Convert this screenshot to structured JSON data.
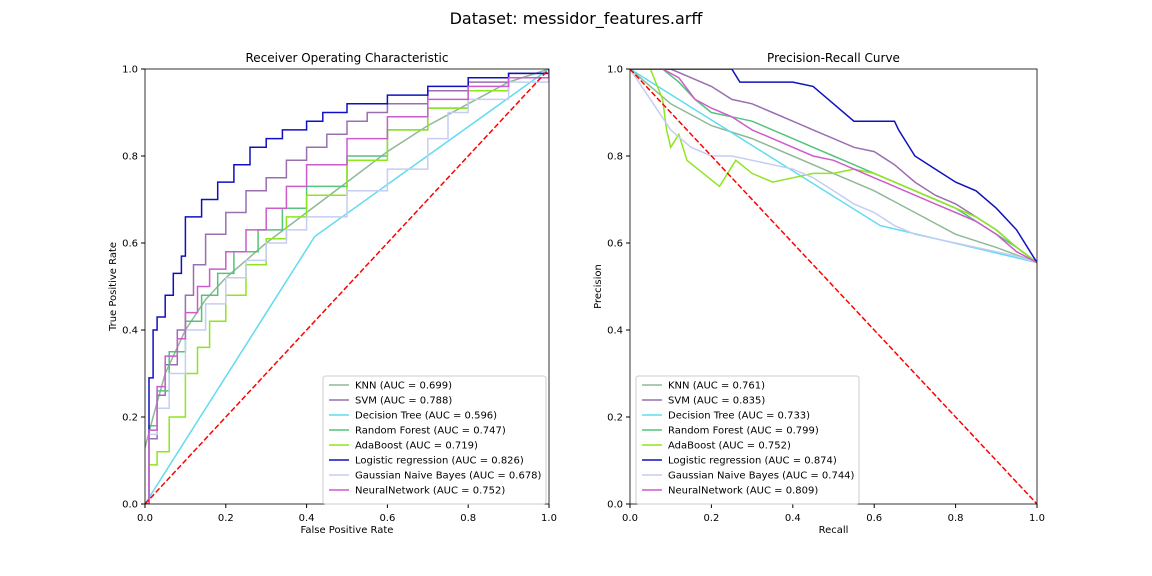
{
  "suptitle": "Dataset: messidor_features.arff",
  "chart_data": [
    {
      "type": "line",
      "title": "Receiver Operating Characteristic",
      "xlabel": "False Positive Rate",
      "ylabel": "True Positive Rate",
      "xlim": [
        0,
        1
      ],
      "ylim": [
        0,
        1
      ],
      "xticks": [
        "0.0",
        "0.2",
        "0.4",
        "0.6",
        "0.8",
        "1.0"
      ],
      "yticks": [
        "0.0",
        "0.2",
        "0.4",
        "0.6",
        "0.8",
        "1.0"
      ],
      "legend_position": "lower-right",
      "reference_line": {
        "x": [
          0,
          1
        ],
        "y": [
          0,
          1
        ],
        "color": "#ff0000",
        "style": "dashed"
      },
      "series": [
        {
          "name": "KNN",
          "label": "KNN (AUC = 0.699)",
          "color": "#8fb996",
          "step": false,
          "x": [
            0,
            0.02,
            0.05,
            0.1,
            0.15,
            0.2,
            0.3,
            0.4,
            0.5,
            0.6,
            0.7,
            0.8,
            0.9,
            1.0
          ],
          "y": [
            0.13,
            0.2,
            0.3,
            0.4,
            0.47,
            0.52,
            0.6,
            0.67,
            0.74,
            0.81,
            0.87,
            0.92,
            0.97,
            1.0
          ]
        },
        {
          "name": "SVM",
          "label": "SVM (AUC = 0.788)",
          "color": "#9a6fb0",
          "step": true,
          "x": [
            0,
            0.01,
            0.03,
            0.05,
            0.08,
            0.1,
            0.12,
            0.15,
            0.2,
            0.25,
            0.3,
            0.35,
            0.4,
            0.45,
            0.5,
            0.55,
            0.6,
            0.7,
            0.8,
            0.9,
            1.0
          ],
          "y": [
            0,
            0.15,
            0.25,
            0.32,
            0.4,
            0.48,
            0.55,
            0.62,
            0.67,
            0.72,
            0.75,
            0.79,
            0.82,
            0.85,
            0.88,
            0.9,
            0.92,
            0.95,
            0.97,
            0.99,
            1.0
          ]
        },
        {
          "name": "Decision Tree",
          "label": "Decision Tree (AUC = 0.596)",
          "color": "#5fdcf0",
          "step": false,
          "x": [
            0,
            0.42,
            1.0
          ],
          "y": [
            0,
            0.615,
            1.0
          ]
        },
        {
          "name": "Random Forest",
          "label": "Random Forest (AUC = 0.747)",
          "color": "#55c37d",
          "step": true,
          "x": [
            0,
            0.01,
            0.03,
            0.06,
            0.1,
            0.14,
            0.18,
            0.22,
            0.28,
            0.34,
            0.4,
            0.5,
            0.6,
            0.7,
            0.8,
            0.9,
            1.0
          ],
          "y": [
            0,
            0.18,
            0.26,
            0.35,
            0.42,
            0.48,
            0.53,
            0.58,
            0.63,
            0.68,
            0.73,
            0.8,
            0.86,
            0.91,
            0.95,
            0.98,
            1.0
          ]
        },
        {
          "name": "AdaBoost",
          "label": "AdaBoost (AUC = 0.719)",
          "color": "#8ee61f",
          "step": true,
          "x": [
            0,
            0.01,
            0.03,
            0.06,
            0.1,
            0.13,
            0.16,
            0.2,
            0.25,
            0.3,
            0.35,
            0.4,
            0.5,
            0.6,
            0.7,
            0.8,
            0.9,
            1.0
          ],
          "y": [
            0,
            0.09,
            0.12,
            0.2,
            0.3,
            0.36,
            0.42,
            0.48,
            0.55,
            0.61,
            0.66,
            0.71,
            0.79,
            0.86,
            0.91,
            0.95,
            0.98,
            1.0
          ]
        },
        {
          "name": "Logistic regression",
          "label": "Logistic regression (AUC = 0.826)",
          "color": "#1010c0",
          "step": true,
          "x": [
            0,
            0.01,
            0.02,
            0.03,
            0.05,
            0.07,
            0.09,
            0.1,
            0.14,
            0.18,
            0.22,
            0.26,
            0.3,
            0.34,
            0.4,
            0.44,
            0.5,
            0.6,
            0.7,
            0.8,
            0.9,
            1.0
          ],
          "y": [
            0,
            0.29,
            0.4,
            0.43,
            0.48,
            0.53,
            0.57,
            0.66,
            0.7,
            0.74,
            0.78,
            0.82,
            0.84,
            0.86,
            0.88,
            0.9,
            0.92,
            0.94,
            0.96,
            0.98,
            0.99,
            1.0
          ]
        },
        {
          "name": "Gaussian Naive Bayes",
          "label": "Gaussian Naive Bayes (AUC = 0.678)",
          "color": "#c5cdf2",
          "step": true,
          "x": [
            0,
            0.01,
            0.03,
            0.06,
            0.1,
            0.15,
            0.2,
            0.25,
            0.3,
            0.35,
            0.4,
            0.5,
            0.6,
            0.7,
            0.75,
            0.8,
            0.9,
            1.0
          ],
          "y": [
            0,
            0.16,
            0.22,
            0.3,
            0.4,
            0.46,
            0.52,
            0.56,
            0.6,
            0.63,
            0.66,
            0.72,
            0.77,
            0.84,
            0.9,
            0.93,
            0.97,
            1.0
          ]
        },
        {
          "name": "NeuralNetwork",
          "label": "NeuralNetwork (AUC = 0.752)",
          "color": "#cc5ccc",
          "step": true,
          "x": [
            0,
            0.01,
            0.03,
            0.05,
            0.08,
            0.1,
            0.13,
            0.16,
            0.2,
            0.25,
            0.3,
            0.35,
            0.4,
            0.5,
            0.6,
            0.7,
            0.8,
            0.9,
            1.0
          ],
          "y": [
            0,
            0.17,
            0.27,
            0.34,
            0.38,
            0.44,
            0.5,
            0.54,
            0.58,
            0.63,
            0.68,
            0.73,
            0.78,
            0.84,
            0.89,
            0.93,
            0.96,
            0.98,
            1.0
          ]
        }
      ]
    },
    {
      "type": "line",
      "title": "Precision-Recall Curve",
      "xlabel": "Recall",
      "ylabel": "Precision",
      "xlim": [
        0,
        1
      ],
      "ylim": [
        0,
        1
      ],
      "xticks": [
        "0.0",
        "0.2",
        "0.4",
        "0.6",
        "0.8",
        "1.0"
      ],
      "yticks": [
        "0.0",
        "0.2",
        "0.4",
        "0.6",
        "0.8",
        "1.0"
      ],
      "legend_position": "lower-left",
      "reference_line": {
        "x": [
          0,
          1
        ],
        "y": [
          1,
          0
        ],
        "color": "#ff0000",
        "style": "dashed"
      },
      "series": [
        {
          "name": "KNN",
          "label": "KNN (AUC = 0.761)",
          "color": "#8fb996",
          "step": false,
          "x": [
            0,
            0.1,
            0.2,
            0.3,
            0.4,
            0.5,
            0.6,
            0.7,
            0.8,
            0.9,
            1.0
          ],
          "y": [
            1.0,
            0.92,
            0.87,
            0.84,
            0.8,
            0.76,
            0.72,
            0.67,
            0.62,
            0.59,
            0.555
          ]
        },
        {
          "name": "SVM",
          "label": "SVM (AUC = 0.835)",
          "color": "#9a6fb0",
          "step": false,
          "x": [
            0,
            0.05,
            0.1,
            0.15,
            0.2,
            0.25,
            0.3,
            0.35,
            0.4,
            0.45,
            0.5,
            0.55,
            0.6,
            0.65,
            0.7,
            0.75,
            0.8,
            0.85,
            0.9,
            0.95,
            1.0
          ],
          "y": [
            1.0,
            1.0,
            1.0,
            0.98,
            0.96,
            0.93,
            0.92,
            0.9,
            0.88,
            0.86,
            0.84,
            0.82,
            0.81,
            0.78,
            0.74,
            0.71,
            0.69,
            0.66,
            0.63,
            0.59,
            0.555
          ]
        },
        {
          "name": "Decision Tree",
          "label": "Decision Tree (AUC = 0.733)",
          "color": "#5fdcf0",
          "step": false,
          "x": [
            0,
            0.615,
            1.0
          ],
          "y": [
            1.0,
            0.64,
            0.555
          ]
        },
        {
          "name": "Random Forest",
          "label": "Random Forest (AUC = 0.799)",
          "color": "#55c37d",
          "step": false,
          "x": [
            0,
            0.04,
            0.08,
            0.12,
            0.16,
            0.2,
            0.25,
            0.3,
            0.35,
            0.4,
            0.45,
            0.5,
            0.55,
            0.6,
            0.65,
            0.7,
            0.75,
            0.8,
            0.85,
            0.9,
            0.95,
            1.0
          ],
          "y": [
            1.0,
            1.0,
            1.0,
            0.97,
            0.93,
            0.9,
            0.89,
            0.88,
            0.86,
            0.84,
            0.82,
            0.8,
            0.78,
            0.76,
            0.74,
            0.72,
            0.7,
            0.68,
            0.65,
            0.62,
            0.59,
            0.555
          ]
        },
        {
          "name": "AdaBoost",
          "label": "AdaBoost (AUC = 0.752)",
          "color": "#8ee61f",
          "step": false,
          "x": [
            0,
            0.05,
            0.08,
            0.09,
            0.1,
            0.12,
            0.14,
            0.18,
            0.22,
            0.26,
            0.3,
            0.35,
            0.4,
            0.45,
            0.5,
            0.55,
            0.6,
            0.65,
            0.7,
            0.75,
            0.8,
            0.85,
            0.9,
            0.95,
            1.0
          ],
          "y": [
            1.0,
            1.0,
            0.93,
            0.86,
            0.82,
            0.85,
            0.79,
            0.76,
            0.73,
            0.79,
            0.76,
            0.74,
            0.75,
            0.76,
            0.76,
            0.77,
            0.76,
            0.74,
            0.72,
            0.7,
            0.68,
            0.66,
            0.63,
            0.59,
            0.555
          ]
        },
        {
          "name": "Logistic regression",
          "label": "Logistic regression (AUC = 0.874)",
          "color": "#1010c0",
          "step": false,
          "x": [
            0,
            0.05,
            0.1,
            0.15,
            0.2,
            0.25,
            0.27,
            0.3,
            0.35,
            0.4,
            0.45,
            0.5,
            0.55,
            0.6,
            0.65,
            0.66,
            0.7,
            0.75,
            0.8,
            0.85,
            0.9,
            0.95,
            1.0
          ],
          "y": [
            1.0,
            1.0,
            1.0,
            1.0,
            1.0,
            1.0,
            0.97,
            0.97,
            0.97,
            0.97,
            0.96,
            0.92,
            0.88,
            0.88,
            0.88,
            0.86,
            0.8,
            0.77,
            0.74,
            0.72,
            0.68,
            0.63,
            0.555
          ]
        },
        {
          "name": "Gaussian Naive Bayes",
          "label": "Gaussian Naive Bayes (AUC = 0.744)",
          "color": "#c5cdf2",
          "step": false,
          "x": [
            0,
            0.05,
            0.1,
            0.15,
            0.2,
            0.25,
            0.3,
            0.35,
            0.4,
            0.45,
            0.5,
            0.55,
            0.6,
            0.65,
            0.7,
            0.75,
            0.8,
            0.85,
            0.9,
            0.95,
            1.0
          ],
          "y": [
            1.0,
            0.93,
            0.86,
            0.82,
            0.8,
            0.8,
            0.79,
            0.78,
            0.77,
            0.75,
            0.72,
            0.69,
            0.67,
            0.64,
            0.62,
            0.61,
            0.6,
            0.59,
            0.58,
            0.57,
            0.555
          ]
        },
        {
          "name": "NeuralNetwork",
          "label": "NeuralNetwork (AUC = 0.809)",
          "color": "#cc5ccc",
          "step": false,
          "x": [
            0,
            0.04,
            0.08,
            0.12,
            0.16,
            0.2,
            0.25,
            0.3,
            0.35,
            0.4,
            0.45,
            0.5,
            0.55,
            0.6,
            0.65,
            0.7,
            0.75,
            0.8,
            0.85,
            0.9,
            0.95,
            1.0
          ],
          "y": [
            1.0,
            1.0,
            1.0,
            0.98,
            0.93,
            0.91,
            0.89,
            0.86,
            0.84,
            0.82,
            0.8,
            0.79,
            0.77,
            0.75,
            0.73,
            0.71,
            0.69,
            0.67,
            0.65,
            0.62,
            0.58,
            0.555
          ]
        }
      ]
    }
  ]
}
